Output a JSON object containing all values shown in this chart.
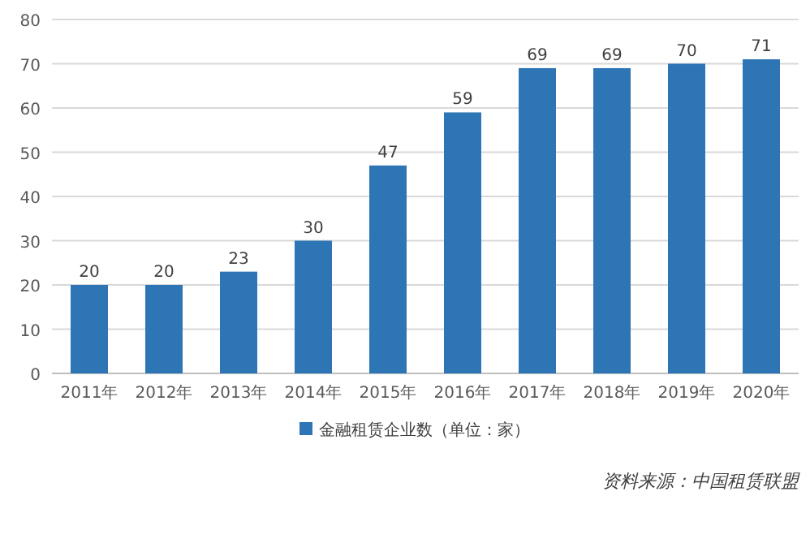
{
  "chart_data": {
    "type": "bar",
    "categories": [
      "2011年",
      "2012年",
      "2013年",
      "2014年",
      "2015年",
      "2016年",
      "2017年",
      "2018年",
      "2019年",
      "2020年"
    ],
    "series": [
      {
        "name": "金融租赁企业数（单位：家）",
        "color": "#2e75b6",
        "values": [
          20,
          20,
          23,
          30,
          47,
          59,
          69,
          69,
          70,
          71
        ]
      }
    ],
    "ylim": [
      0,
      80
    ],
    "yticks": [
      0,
      10,
      20,
      30,
      40,
      50,
      60,
      70,
      80
    ],
    "grid": "y",
    "legend": "bottom",
    "data_labels": true,
    "annotations": [
      "资料来源：中国租赁联盟"
    ]
  }
}
